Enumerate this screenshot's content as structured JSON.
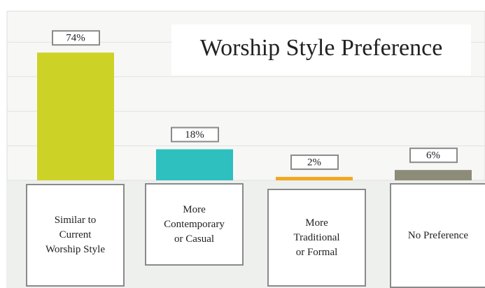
{
  "chart_data": {
    "type": "bar",
    "title": "Worship Style Preference",
    "categories": [
      "Similar to\nCurrent\nWorship Style",
      "More\nContemporary\nor Casual",
      "More\nTraditional\nor Formal",
      "No Preference"
    ],
    "values": [
      74,
      18,
      2,
      6
    ],
    "value_labels": [
      "74%",
      "18%",
      "2%",
      "6%"
    ],
    "colors": [
      "#cdd227",
      "#2ebfbf",
      "#f2a81d",
      "#8c8c78"
    ],
    "ylim": [
      0,
      100
    ],
    "yticks": [
      0,
      20,
      40,
      60,
      80,
      100
    ],
    "grid": true
  }
}
